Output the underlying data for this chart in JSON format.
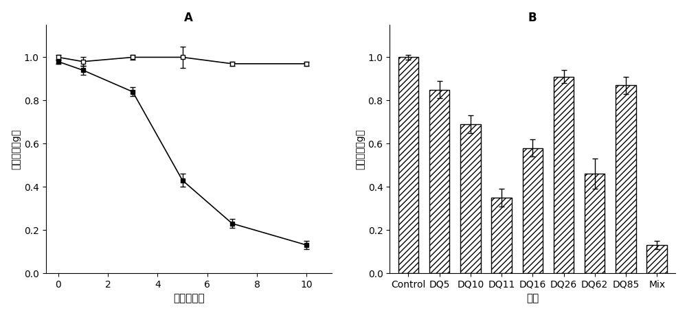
{
  "panel_A": {
    "title": "A",
    "xlabel": "时间（天）",
    "ylabel": "残留原油（g）",
    "control_x": [
      0,
      1,
      3,
      5,
      7,
      10
    ],
    "control_y": [
      1.0,
      0.98,
      1.0,
      1.0,
      0.97,
      0.97
    ],
    "control_yerr": [
      0.01,
      0.02,
      0.01,
      0.05,
      0.01,
      0.01
    ],
    "treat_x": [
      0,
      1,
      3,
      5,
      7,
      10
    ],
    "treat_y": [
      0.98,
      0.94,
      0.84,
      0.43,
      0.23,
      0.13
    ],
    "treat_yerr": [
      0.01,
      0.02,
      0.02,
      0.03,
      0.02,
      0.02
    ],
    "xlim": [
      -0.5,
      11
    ],
    "ylim": [
      0.0,
      1.15
    ],
    "yticks": [
      0.0,
      0.2,
      0.4,
      0.6,
      0.8,
      1.0
    ]
  },
  "panel_B": {
    "title": "B",
    "xlabel": "菌株",
    "ylabel": "残留原油（g）",
    "categories": [
      "Control",
      "DQ5",
      "DQ10",
      "DQ11",
      "DQ16",
      "DQ26",
      "DQ62",
      "DQ85",
      "Mix"
    ],
    "values": [
      1.0,
      0.85,
      0.69,
      0.35,
      0.58,
      0.91,
      0.46,
      0.87,
      0.13
    ],
    "yerr": [
      0.01,
      0.04,
      0.04,
      0.04,
      0.04,
      0.03,
      0.07,
      0.04,
      0.02
    ],
    "ylim": [
      0.0,
      1.15
    ],
    "yticks": [
      0.0,
      0.2,
      0.4,
      0.6,
      0.8,
      1.0
    ]
  },
  "background_color": "#ffffff",
  "hatch": "////"
}
